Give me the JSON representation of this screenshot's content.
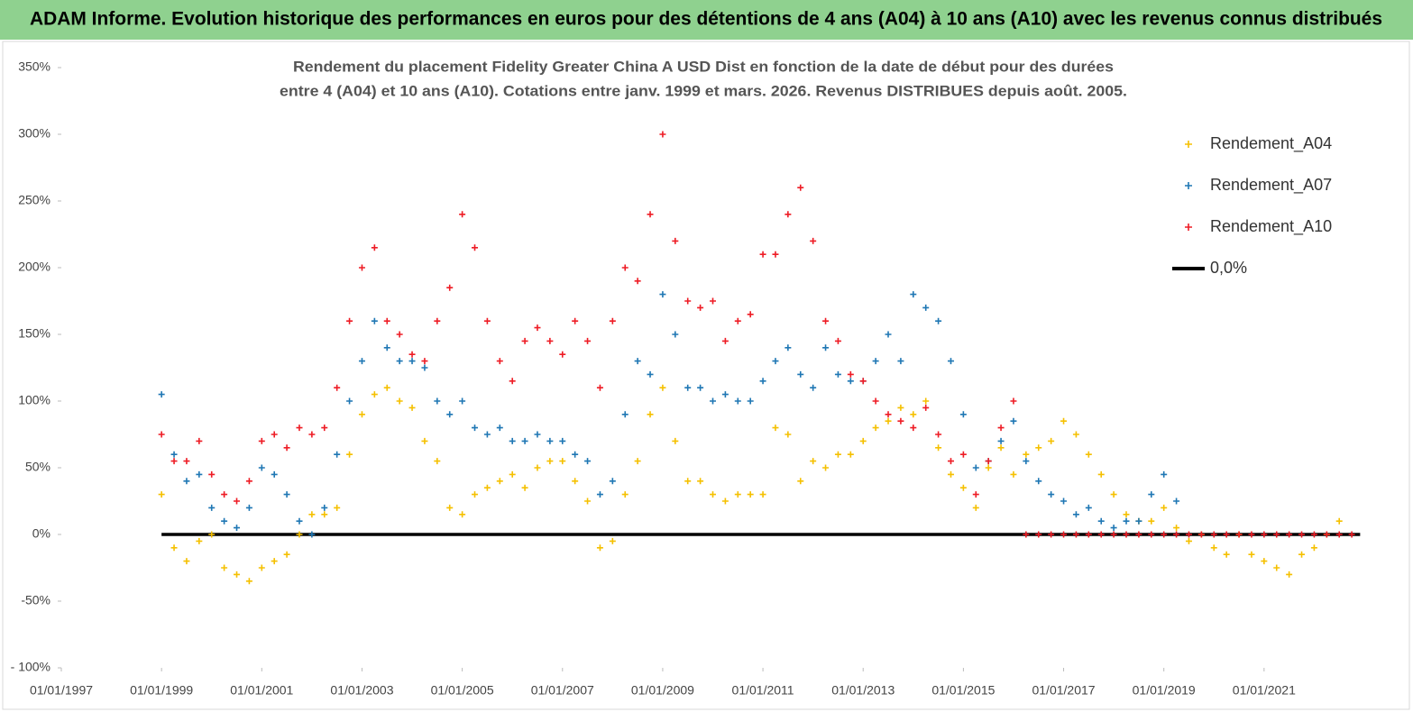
{
  "header": {
    "title": "ADAM Informe. Evolution historique des performances en euros pour des détentions de 4 ans (A04) à 10 ans (A10) avec les revenus connus distribués"
  },
  "chart_data": {
    "type": "scatter",
    "title": [
      "Rendement du placement Fidelity Greater China A USD Dist en fonction de la date de début pour des durées",
      "entre 4 (A04) et 10 ans (A10). Cotations entre janv. 1999 et mars. 2026. Revenus DISTRIBUES depuis août. 2005."
    ],
    "xlim": [
      "1997-01",
      "2023-01"
    ],
    "xticks": [
      {
        "value": "1997-01",
        "label": "01/01/1997"
      },
      {
        "value": "1999-01",
        "label": "01/01/1999"
      },
      {
        "value": "2001-01",
        "label": "01/01/2001"
      },
      {
        "value": "2003-01",
        "label": "01/01/2003"
      },
      {
        "value": "2005-01",
        "label": "01/01/2005"
      },
      {
        "value": "2007-01",
        "label": "01/01/2007"
      },
      {
        "value": "2009-01",
        "label": "01/01/2009"
      },
      {
        "value": "2011-01",
        "label": "01/01/2011"
      },
      {
        "value": "2013-01",
        "label": "01/01/2013"
      },
      {
        "value": "2015-01",
        "label": "01/01/2015"
      },
      {
        "value": "2017-01",
        "label": "01/01/2017"
      },
      {
        "value": "2019-01",
        "label": "01/01/2019"
      },
      {
        "value": "2021-01",
        "label": "01/01/2021"
      }
    ],
    "ylim": [
      -100,
      350
    ],
    "yticks": [
      {
        "value": -100,
        "label": "- 100%"
      },
      {
        "value": -50,
        "label": "-50%"
      },
      {
        "value": 0,
        "label": "0%"
      },
      {
        "value": 50,
        "label": "50%"
      },
      {
        "value": 100,
        "label": "100%"
      },
      {
        "value": 150,
        "label": "150%"
      },
      {
        "value": 200,
        "label": "200%"
      },
      {
        "value": 250,
        "label": "250%"
      },
      {
        "value": 300,
        "label": "300%"
      },
      {
        "value": 350,
        "label": "350%"
      }
    ],
    "legend": "top-right",
    "series": [
      {
        "name": "Rendement_A04",
        "color": "#f5c000",
        "x": [
          "1999-01",
          "1999-04",
          "1999-07",
          "1999-10",
          "2000-01",
          "2000-04",
          "2000-07",
          "2000-10",
          "2001-01",
          "2001-04",
          "2001-07",
          "2001-10",
          "2002-01",
          "2002-04",
          "2002-07",
          "2002-10",
          "2003-01",
          "2003-04",
          "2003-07",
          "2003-10",
          "2004-01",
          "2004-04",
          "2004-07",
          "2004-10",
          "2005-01",
          "2005-04",
          "2005-07",
          "2005-10",
          "2006-01",
          "2006-04",
          "2006-07",
          "2006-10",
          "2007-01",
          "2007-04",
          "2007-07",
          "2007-10",
          "2008-01",
          "2008-04",
          "2008-07",
          "2008-10",
          "2009-01",
          "2009-04",
          "2009-07",
          "2009-10",
          "2010-01",
          "2010-04",
          "2010-07",
          "2010-10",
          "2011-01",
          "2011-04",
          "2011-07",
          "2011-10",
          "2012-01",
          "2012-04",
          "2012-07",
          "2012-10",
          "2013-01",
          "2013-04",
          "2013-07",
          "2013-10",
          "2014-01",
          "2014-04",
          "2014-07",
          "2014-10",
          "2015-01",
          "2015-04",
          "2015-07",
          "2015-10",
          "2016-01",
          "2016-04",
          "2016-07",
          "2016-10",
          "2017-01",
          "2017-04",
          "2017-07",
          "2017-10",
          "2018-01",
          "2018-04",
          "2018-07",
          "2018-10",
          "2019-01",
          "2019-04",
          "2019-07",
          "2019-10",
          "2020-01",
          "2020-04",
          "2020-07",
          "2020-10",
          "2021-01",
          "2021-04",
          "2021-07",
          "2021-10",
          "2022-01",
          "2022-04",
          "2022-07"
        ],
        "values": [
          30,
          -10,
          -20,
          -5,
          0,
          -25,
          -30,
          -35,
          -25,
          -20,
          -15,
          0,
          15,
          15,
          20,
          60,
          90,
          105,
          110,
          100,
          95,
          70,
          55,
          20,
          15,
          30,
          35,
          40,
          45,
          35,
          50,
          55,
          55,
          40,
          25,
          -10,
          -5,
          30,
          55,
          90,
          110,
          70,
          40,
          40,
          30,
          25,
          30,
          30,
          30,
          80,
          75,
          40,
          55,
          50,
          60,
          60,
          70,
          80,
          85,
          95,
          90,
          100,
          65,
          45,
          35,
          20,
          50,
          65,
          45,
          60,
          65,
          70,
          85,
          75,
          60,
          45,
          30,
          15,
          10,
          10,
          20,
          5,
          -5,
          0,
          -10,
          -15,
          0,
          -15,
          -20,
          -25,
          -30,
          -15,
          -10,
          0,
          10
        ]
      },
      {
        "name": "Rendement_A07",
        "color": "#1f77b4",
        "x": [
          "1999-01",
          "1999-04",
          "1999-07",
          "1999-10",
          "2000-01",
          "2000-04",
          "2000-07",
          "2000-10",
          "2001-01",
          "2001-04",
          "2001-07",
          "2001-10",
          "2002-01",
          "2002-04",
          "2002-07",
          "2002-10",
          "2003-01",
          "2003-04",
          "2003-07",
          "2003-10",
          "2004-01",
          "2004-04",
          "2004-07",
          "2004-10",
          "2005-01",
          "2005-04",
          "2005-07",
          "2005-10",
          "2006-01",
          "2006-04",
          "2006-07",
          "2006-10",
          "2007-01",
          "2007-04",
          "2007-07",
          "2007-10",
          "2008-01",
          "2008-04",
          "2008-07",
          "2008-10",
          "2009-01",
          "2009-04",
          "2009-07",
          "2009-10",
          "2010-01",
          "2010-04",
          "2010-07",
          "2010-10",
          "2011-01",
          "2011-04",
          "2011-07",
          "2011-10",
          "2012-01",
          "2012-04",
          "2012-07",
          "2012-10",
          "2013-01",
          "2013-04",
          "2013-07",
          "2013-10",
          "2014-01",
          "2014-04",
          "2014-07",
          "2014-10",
          "2015-01",
          "2015-04",
          "2015-07",
          "2015-10",
          "2016-01",
          "2016-04",
          "2016-07",
          "2016-10",
          "2017-01",
          "2017-04",
          "2017-07",
          "2017-10",
          "2018-01",
          "2018-04",
          "2018-07",
          "2018-10",
          "2019-01",
          "2019-04"
        ],
        "values": [
          105,
          60,
          40,
          45,
          20,
          10,
          5,
          20,
          50,
          45,
          30,
          10,
          0,
          20,
          60,
          100,
          130,
          160,
          140,
          130,
          130,
          125,
          100,
          90,
          100,
          80,
          75,
          80,
          70,
          70,
          75,
          70,
          70,
          60,
          55,
          30,
          40,
          90,
          130,
          120,
          180,
          150,
          110,
          110,
          100,
          105,
          100,
          100,
          115,
          130,
          140,
          120,
          110,
          140,
          120,
          115,
          115,
          130,
          150,
          130,
          180,
          170,
          160,
          130,
          90,
          50,
          55,
          70,
          85,
          55,
          40,
          30,
          25,
          15,
          20,
          10,
          5,
          10,
          10,
          30,
          45,
          25
        ]
      },
      {
        "name": "Rendement_A10",
        "color": "#ee1c25",
        "x": [
          "1999-01",
          "1999-04",
          "1999-07",
          "1999-10",
          "2000-01",
          "2000-04",
          "2000-07",
          "2000-10",
          "2001-01",
          "2001-04",
          "2001-07",
          "2001-10",
          "2002-01",
          "2002-04",
          "2002-07",
          "2002-10",
          "2003-01",
          "2003-04",
          "2003-07",
          "2003-10",
          "2004-01",
          "2004-04",
          "2004-07",
          "2004-10",
          "2005-01",
          "2005-04",
          "2005-07",
          "2005-10",
          "2006-01",
          "2006-04",
          "2006-07",
          "2006-10",
          "2007-01",
          "2007-04",
          "2007-07",
          "2007-10",
          "2008-01",
          "2008-04",
          "2008-07",
          "2008-10",
          "2009-01",
          "2009-04",
          "2009-07",
          "2009-10",
          "2010-01",
          "2010-04",
          "2010-07",
          "2010-10",
          "2011-01",
          "2011-04",
          "2011-07",
          "2011-10",
          "2012-01",
          "2012-04",
          "2012-07",
          "2012-10",
          "2013-01",
          "2013-04",
          "2013-07",
          "2013-10",
          "2014-01",
          "2014-04",
          "2014-07",
          "2014-10",
          "2015-01",
          "2015-04",
          "2015-07",
          "2015-10",
          "2016-01",
          "2016-04",
          "2016-07",
          "2016-10",
          "2017-01",
          "2017-04",
          "2017-07",
          "2017-10",
          "2018-01",
          "2018-04",
          "2018-07",
          "2018-10",
          "2019-01",
          "2019-04",
          "2019-07",
          "2019-10",
          "2020-01",
          "2020-04",
          "2020-07",
          "2020-10",
          "2021-01",
          "2021-04",
          "2021-07",
          "2021-10",
          "2022-01",
          "2022-04",
          "2022-07",
          "2022-10"
        ],
        "values": [
          75,
          55,
          55,
          70,
          45,
          30,
          25,
          40,
          70,
          75,
          65,
          80,
          75,
          80,
          110,
          160,
          200,
          215,
          160,
          150,
          135,
          130,
          160,
          185,
          240,
          215,
          160,
          130,
          115,
          145,
          155,
          145,
          135,
          160,
          145,
          110,
          160,
          200,
          190,
          240,
          300,
          220,
          175,
          170,
          175,
          145,
          160,
          165,
          210,
          210,
          240,
          260,
          220,
          160,
          145,
          120,
          115,
          100,
          90,
          85,
          80,
          95,
          75,
          55,
          60,
          30,
          55,
          80,
          100,
          0,
          0,
          0,
          0,
          0,
          0,
          0,
          0,
          0,
          0,
          0,
          0,
          0,
          0,
          0,
          0,
          0,
          0,
          0,
          0,
          0,
          0,
          0,
          0,
          0,
          0,
          0
        ]
      },
      {
        "name": "0,0%",
        "color": "#000000",
        "type": "line",
        "x": [
          "1999-01",
          "2022-12"
        ],
        "values": [
          0,
          0
        ]
      }
    ]
  }
}
